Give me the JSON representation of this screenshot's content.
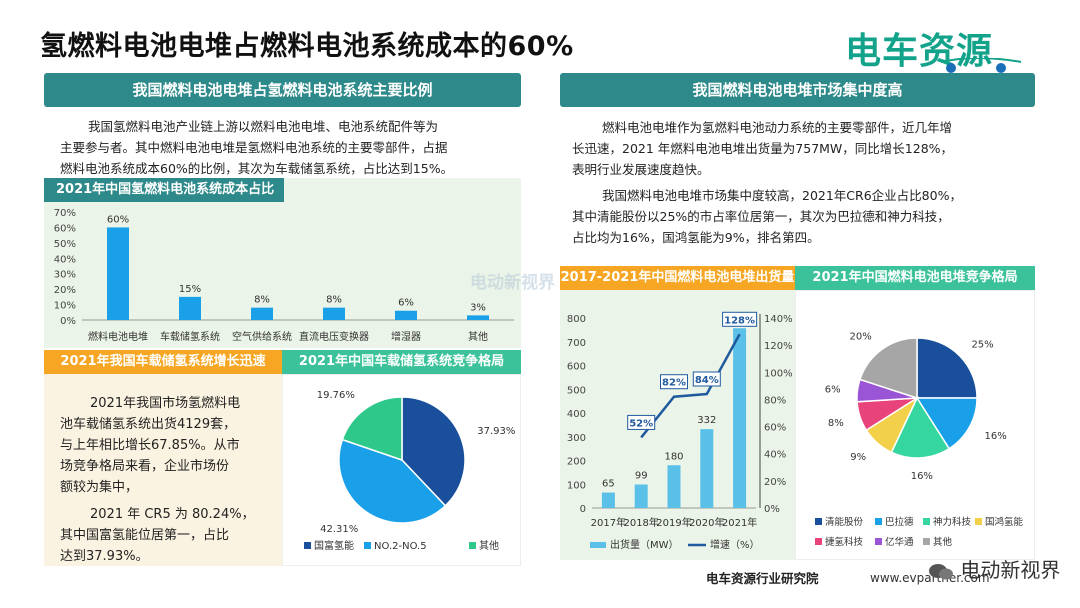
{
  "title": "氢燃料电池电堆占燃料电池系统成本的60%",
  "logo": {
    "text": "电车资源",
    "icon": "car-plug-icon"
  },
  "watermark": "电动新视界",
  "left_panel": {
    "header": "我国燃料电池电堆占氢燃料电池系统主要比例",
    "paragraph": [
      "我国氢燃料电池产业链上游以燃料电池电堆、电池系统配件等为",
      "主要参与者。其中燃料电池电堆是氢燃料电池系统的主要零部件，占据",
      "燃料电池系统成本60%的比例，其次为车载储氢系统，占比达到15%。"
    ],
    "chart_header": "2021年中国氢燃料电池系统成本占比",
    "storage_header": "2021年我国车载储氢系统增长迅速",
    "storage_paragraph": [
      "2021年我国市场氢燃料电",
      "池车载储氢系统出货4129套，",
      "与上年相比增长67.85%。从市",
      "场竞争格局来看，企业市场份",
      "额较为集中，"
    ],
    "storage_paragraph2": [
      "2021 年 CR5 为 80.24%，",
      "其中国富氢能位居第一，占比",
      "达到37.93%。"
    ],
    "pie_header": "2021年中国车载储氢系统竞争格局"
  },
  "right_panel": {
    "header": "我国燃料电池电堆市场集中度高",
    "paragraph1": [
      "燃料电池电堆作为氢燃料电池动力系统的主要零部件，近几年增",
      "长迅速，2021 年燃料电池电堆出货量为757MW，同比增长128%，",
      "表明行业发展速度趋快。"
    ],
    "paragraph2": [
      "我国燃料电池电堆市场集中度较高，2021年CR6企业占比80%，",
      "其中清能股份以25%的市占率位居第一，其次为巴拉德和神力科技，",
      "占比均为16%，国鸿氢能为9%，排名第四。"
    ],
    "combo_header": "2017-2021年中国燃料电池电堆出货量",
    "pie_header": "2021年中国燃料电池电堆竞争格局"
  },
  "footer": {
    "org": "电车资源行业研究院",
    "website": "www.evpartner.com",
    "wechat": "电动新视界"
  },
  "chart_data": [
    {
      "type": "bar",
      "categories": [
        "燃料电池电堆",
        "车载储氢系统",
        "空气供给系统",
        "直流电压变换器",
        "增湿器",
        "其他"
      ],
      "values": [
        60,
        15,
        8,
        8,
        6,
        3
      ],
      "value_labels": [
        "60%",
        "15%",
        "8%",
        "8%",
        "6%",
        "3%"
      ],
      "yticks": [
        "0%",
        "10%",
        "20%",
        "30%",
        "40%",
        "50%",
        "60%",
        "70%"
      ],
      "ylim": [
        0,
        70
      ],
      "color": "#1aa0e8"
    },
    {
      "type": "pie",
      "labels": [
        "国富氢能",
        "NO.2-NO.5",
        "其他"
      ],
      "values": [
        37.93,
        42.31,
        19.76
      ],
      "value_labels": [
        "37.93%",
        "42.31%",
        "19.76%"
      ],
      "colors": [
        "#1a4f9c",
        "#1aa0e8",
        "#2ec98a"
      ]
    },
    {
      "type": "bar",
      "categories": [
        "2017年",
        "2018年",
        "2019年",
        "2020年",
        "2021年"
      ],
      "series": [
        {
          "name": "出货量（MW）",
          "values": [
            65,
            99,
            180,
            332,
            757
          ],
          "value_labels": [
            "65",
            "99",
            "180",
            "332",
            "757"
          ],
          "color": "#5bc0e8"
        },
        {
          "name": "增速（%）",
          "values": [
            52,
            82,
            84,
            128
          ],
          "x": [
            "2018年",
            "2019年",
            "2020年",
            "2021年"
          ],
          "value_labels": [
            "52%",
            "82%",
            "84%",
            "128%"
          ],
          "color": "#1f5a9e"
        }
      ],
      "y_left_ticks": [
        "0",
        "100",
        "200",
        "300",
        "400",
        "500",
        "600",
        "700",
        "800"
      ],
      "y_right_ticks": [
        "0%",
        "20%",
        "40%",
        "60%",
        "80%",
        "100%",
        "120%",
        "140%"
      ],
      "ylim_left": [
        0,
        800
      ],
      "ylim_right": [
        0,
        140
      ]
    },
    {
      "type": "pie",
      "labels": [
        "清能股份",
        "巴拉德",
        "神力科技",
        "国鸿氢能",
        "捷氢科技",
        "亿华通",
        "其他"
      ],
      "legend_labels": [
        "清能股份",
        "巴拉德",
        "神力科技",
        "国鸿氢能",
        "捷氢科技",
        "亿华通",
        "其他"
      ],
      "values": [
        25,
        16,
        16,
        9,
        8,
        6,
        20
      ],
      "value_labels": [
        "25%",
        "16%",
        "16%",
        "9%",
        "8%",
        "6%",
        "20%"
      ],
      "colors": [
        "#1a4f9c",
        "#1aa0e8",
        "#36d6a0",
        "#f2d04a",
        "#e8437a",
        "#9a55d6",
        "#a6a6a6"
      ]
    }
  ]
}
